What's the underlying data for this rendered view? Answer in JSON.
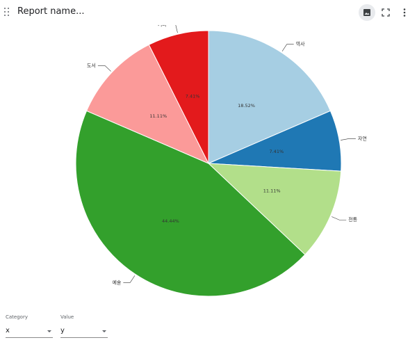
{
  "header": {
    "title": "Report name..."
  },
  "icons": {
    "drag": "drag-handle-icon",
    "image": "image-icon",
    "fullscreen": "fullscreen-icon",
    "more": "more-vert-icon"
  },
  "controls": {
    "category_label": "Category",
    "category_value": "x",
    "value_label": "Value",
    "value_value": "y"
  },
  "chart_data": {
    "type": "pie",
    "title": "",
    "slices": [
      {
        "label": "역사",
        "value": 18.52,
        "display": "18.52%",
        "color": "#a6cee3"
      },
      {
        "label": "자연",
        "value": 7.41,
        "display": "7.41%",
        "color": "#1f78b4"
      },
      {
        "label": "전통",
        "value": 11.11,
        "display": "11.11%",
        "color": "#b2df8a"
      },
      {
        "label": "예술",
        "value": 44.44,
        "display": "44.44%",
        "color": "#33a02c"
      },
      {
        "label": "도서",
        "value": 11.11,
        "display": "11.11%",
        "color": "#fb9a99"
      },
      {
        "label": "기타",
        "value": 7.41,
        "display": "7.41%",
        "color": "#e31a1c"
      }
    ]
  }
}
